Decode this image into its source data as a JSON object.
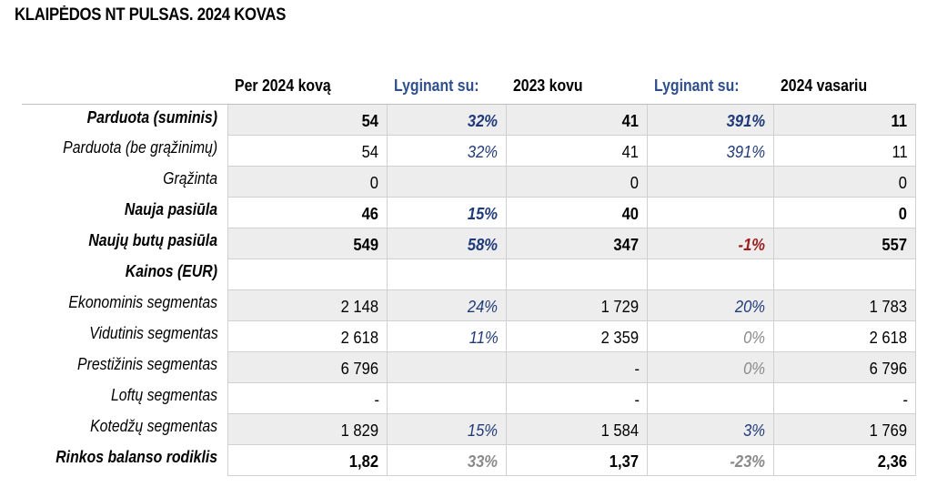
{
  "title": "KLAIPĖDOS NT PULSAS. 2024 KOVAS",
  "headers": [
    "Per 2024 kovą",
    "Lyginant su:",
    "2023 kovu",
    "Lyginant su:",
    "2024 vasariu"
  ],
  "rows": [
    {
      "label": "Parduota (suminis)",
      "bold": true,
      "shade": true,
      "c1": "54",
      "c2": "32%",
      "c2c": "blue",
      "c3": "41",
      "c4": "391%",
      "c4c": "blue",
      "c5": "11"
    },
    {
      "label": "Parduota (be grąžinimų)",
      "bold": false,
      "shade": false,
      "c1": "54",
      "c2": "32%",
      "c2c": "blue",
      "c3": "41",
      "c4": "391%",
      "c4c": "blue",
      "c5": "11"
    },
    {
      "label": "Grąžinta",
      "bold": false,
      "shade": true,
      "c1": "0",
      "c2": "",
      "c2c": "",
      "c3": "0",
      "c4": "",
      "c4c": "",
      "c5": "0"
    },
    {
      "label": "Nauja pasiūla",
      "bold": true,
      "shade": false,
      "c1": "46",
      "c2": "15%",
      "c2c": "blue",
      "c3": "40",
      "c4": "",
      "c4c": "",
      "c5": "0"
    },
    {
      "label": "Naujų butų pasiūla",
      "bold": true,
      "shade": true,
      "c1": "549",
      "c2": "58%",
      "c2c": "blue",
      "c3": "347",
      "c4": "-1%",
      "c4c": "red",
      "c5": "557"
    },
    {
      "label": "Kainos (EUR)",
      "bold": true,
      "shade": false,
      "c1": "",
      "c2": "",
      "c2c": "",
      "c3": "",
      "c4": "",
      "c4c": "",
      "c5": ""
    },
    {
      "label": "Ekonominis segmentas",
      "bold": false,
      "shade": true,
      "c1": "2 148",
      "c2": "24%",
      "c2c": "blue",
      "c3": "1 729",
      "c4": "20%",
      "c4c": "blue",
      "c5": "1 783"
    },
    {
      "label": "Vidutinis segmentas",
      "bold": false,
      "shade": false,
      "c1": "2 618",
      "c2": "11%",
      "c2c": "blue",
      "c3": "2 359",
      "c4": "0%",
      "c4c": "gray",
      "c5": "2 618"
    },
    {
      "label": "Prestižinis segmentas",
      "bold": false,
      "shade": true,
      "c1": "6 796",
      "c2": "",
      "c2c": "",
      "c3": "-",
      "c4": "0%",
      "c4c": "gray",
      "c5": "6 796"
    },
    {
      "label": "Loftų segmentas",
      "bold": false,
      "shade": false,
      "c1": "-",
      "c2": "",
      "c2c": "",
      "c3": "-",
      "c4": "",
      "c4c": "",
      "c5": "-"
    },
    {
      "label": "Kotedžų segmentas",
      "bold": false,
      "shade": true,
      "c1": "1 829",
      "c2": "15%",
      "c2c": "blue",
      "c3": "1 584",
      "c4": "3%",
      "c4c": "blue",
      "c5": "1 769"
    },
    {
      "label": "Rinkos balanso rodiklis",
      "bold": true,
      "shade": false,
      "c1": "1,82",
      "c2": "33%",
      "c2c": "gray",
      "c3": "1,37",
      "c4": "-23%",
      "c4c": "gray",
      "c5": "2,36"
    }
  ]
}
